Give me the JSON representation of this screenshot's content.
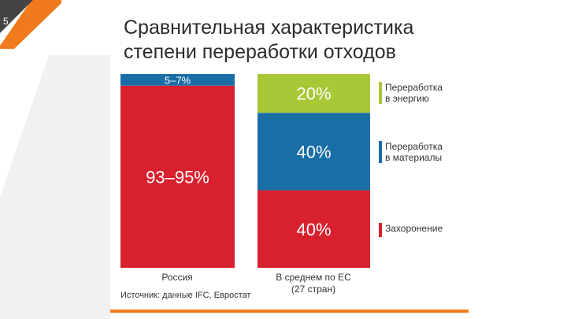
{
  "slide": {
    "number": "5"
  },
  "colors": {
    "accent": "#f07b1c",
    "dark": "#3a3a3a"
  },
  "chart_data": {
    "type": "bar",
    "stacked": true,
    "normalized": true,
    "title": "Сравнительная характеристика степени переработки отходов",
    "categories": [
      "Россия",
      "В среднем по ЕС (27 стран)"
    ],
    "series": [
      {
        "name": "Захоронение",
        "color": "#d9202e",
        "values": [
          94,
          40
        ],
        "labels": [
          "93–95%",
          "40%"
        ]
      },
      {
        "name": "Переработка в материалы",
        "color": "#1a6ea8",
        "values": [
          6,
          40
        ],
        "labels": [
          "5–7%",
          "40%"
        ]
      },
      {
        "name": "Переработка в энергию",
        "color": "#a8c838",
        "values": [
          0,
          20
        ],
        "labels": [
          "",
          "20%"
        ]
      }
    ],
    "source": "Источник: данные IFC, Евростат",
    "ylim": [
      0,
      100
    ]
  },
  "legend": [
    {
      "label_line1": "Переработка",
      "label_line2": "в энергию",
      "color": "#a8c838"
    },
    {
      "label_line1": "Переработка",
      "label_line2": "в материалы",
      "color": "#1a6ea8"
    },
    {
      "label_line1": "Захоронение",
      "label_line2": "",
      "color": "#d9202e"
    }
  ],
  "axis_labels": {
    "russia": "Россия",
    "eu_line1": "В среднем по ЕС",
    "eu_line2": "(27 стран)"
  }
}
